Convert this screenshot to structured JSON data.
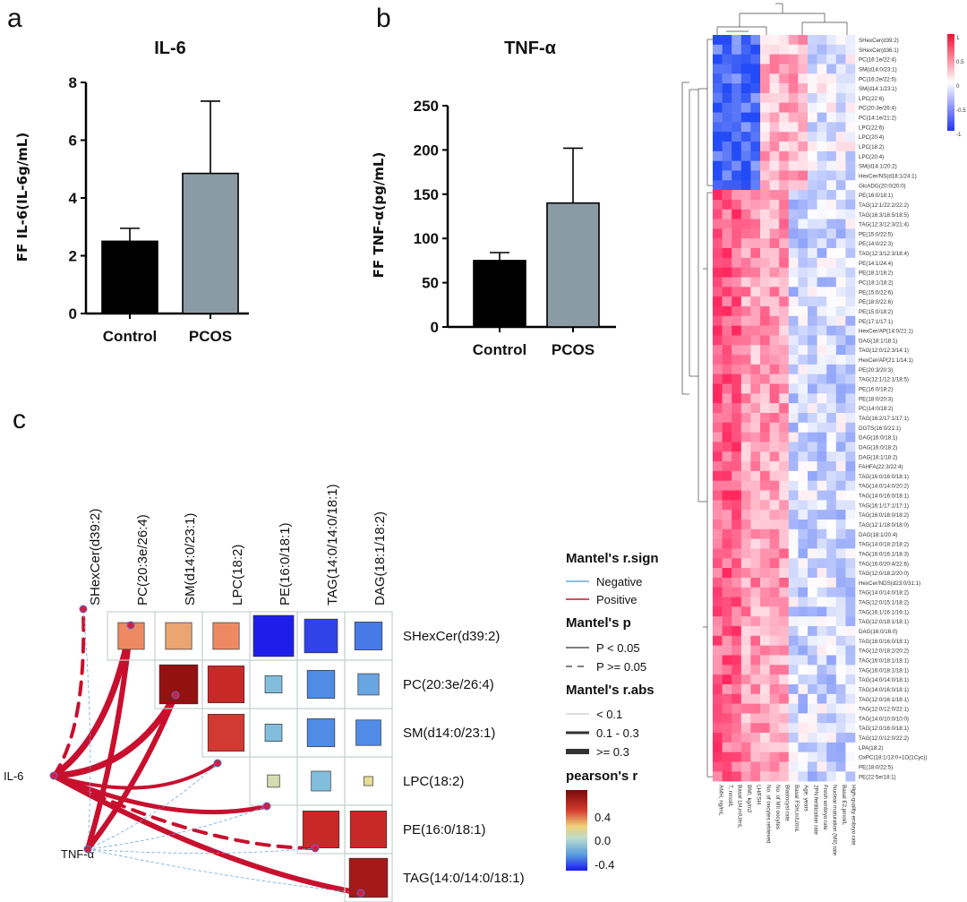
{
  "panel_labels": {
    "a": "a",
    "b": "b",
    "c": "c"
  },
  "chart_data": [
    {
      "type": "bar",
      "title": "IL-6",
      "ylabel": "FF IL-6(IL-6g/mL)",
      "categories": [
        "Control",
        "PCOS"
      ],
      "values": [
        2.5,
        4.85
      ],
      "error_upper": [
        2.95,
        7.35
      ],
      "ylim": [
        0,
        8
      ],
      "yticks": [
        "0",
        "2",
        "4",
        "6",
        "8"
      ],
      "bar_colors": [
        "#000000",
        "#8b9ba6"
      ]
    },
    {
      "type": "bar",
      "title": "TNF-α",
      "ylabel": "FF TNF-α(pg/mL)",
      "categories": [
        "Control",
        "PCOS"
      ],
      "values": [
        75,
        140
      ],
      "error_upper": [
        84,
        202
      ],
      "ylim": [
        0,
        250
      ],
      "yticks": [
        "0",
        "50",
        "100",
        "150",
        "200",
        "250"
      ],
      "bar_colors": [
        "#000000",
        "#8b9ba6"
      ]
    },
    {
      "type": "heatmap",
      "colorbar_ticks": [
        "1",
        "0.5",
        "0",
        "-0.5",
        "-1"
      ],
      "rows": [
        "SHexCer(d39:2)",
        "SHexCer(d36:1)",
        "PC(16:1e/22:4)",
        "SM(d14:0/23:1)",
        "PC(16:2e/22:5)",
        "SM(d14:1/23:1)",
        "LPC(22:6)",
        "PC(20:3e/26:4)",
        "PC(14:1e/21:2)",
        "LPC(22:6)",
        "LPC(20:4)",
        "LPC(18:2)",
        "LPC(20:4)",
        "SM(d14:1/20:2)",
        "HexCer/NS(d18:1/24:1)",
        "GlcADG(20:0/20:0)",
        "PE(16:0/18:1)",
        "TAG(12:1/22:2/22:2)",
        "TAG(16:3/18:5/18:5)",
        "TAG(12:3/12:3/21:4)",
        "PE(15:0/22:5)",
        "PE(14:0/22:3)",
        "TAG(12:3/12:3/18:4)",
        "PE(14:1/24:4)",
        "PE(18:1/18:2)",
        "PC(18:1/18:2)",
        "PE(15:0/22:6)",
        "PE(18:0/22:6)",
        "PE(15:0/18:2)",
        "PE(17:1/17:1)",
        "HexCer/AP(14:0/21:1)",
        "DAG(18:1/18:1)",
        "TAG(12:0/12:3/14:1)",
        "HexCer/AP(21:1/14:1)",
        "PE(20:3/20:3)",
        "TAG(12:1/12:1/18:5)",
        "PE(16:0/18:2)",
        "PE(18:0/20:3)",
        "PC(14:0/18:2)",
        "TAG(16:2/17:1/17:1)",
        "DGTS(16:0/21:1)",
        "DAG(16:0/18:1)",
        "DAG(16:0/18:2)",
        "DAG(18:1/18:2)",
        "FAHFA(22:3/22:4)",
        "TAG(16:0/16:0/18:1)",
        "TAG(14:0/14:0/20:2)",
        "TAG(14:0/16:0/18:1)",
        "TAG(16:1/17:1/17:1)",
        "TAG(16:0/18:0/18:2)",
        "TAG(12:1/18:0/18:0)",
        "DAG(18:1/20:4)",
        "TAG(14:0/18:2/18:2)",
        "TAG(16:0/16:1/18:3)",
        "TAG(16:0/20:4/22:6)",
        "TAG(12:0/18:2/20:0)",
        "HexCer/NDS(d23:0/31:1)",
        "TAG(14:0/14:0/18:2)",
        "TAG(12:0/15:1/18:2)",
        "TAG(16:1/16:1/16:1)",
        "TAG(12:0/18:1/18:1)",
        "DAG(16:0/16:0)",
        "TAG(16:0/16:0/18:1)",
        "TAG(12:0/18:2/20:2)",
        "TAG(16:0/18:1/18:1)",
        "TAG(16:0/18:1/18:1)",
        "TAG(14:0/14:0/18:1)",
        "TAG(14:0/16:0/18:1)",
        "TAG(12:0/16:1/18:1)",
        "TAG(12:0/12:0/22:1)",
        "TAG(14:0/10:0/10:0)",
        "TAG(12:0/16:0/18:1)",
        "TAG(12:0/12:0/22:2)",
        "LPA(18:2)",
        "OxPC(18:1/13:0+1O(1Cyc))",
        "PE(18:0/22:5)",
        "PE(22:5e/18:1)"
      ],
      "columns": [
        "AMH, ng/mL",
        "T, nmol/L",
        "Basal LH,mIU/mL",
        "BMI, kg/m2",
        "LH/FSH",
        "No. of oocytes retrieved",
        "No. of MII oocytes",
        "Blastocyst rate",
        "Basal FSH,mIU/mL",
        "Age, years",
        "2PN fertilization rate",
        "Fresh embryo rate",
        "Nuclear maturation (MII) rate",
        "Basal E2,pmol/L",
        "High-quality embryo rate"
      ]
    },
    {
      "type": "table",
      "lipids": [
        "SHexCer(d39:2)",
        "PC(20:3e/26:4)",
        "SM(d14:0/23:1)",
        "LPC(18:2)",
        "PE(16:0/18:1)",
        "TAG(14:0/14:0/18:1)",
        "DAG(18:1/18:2)"
      ],
      "matrix_r": [
        [
          0.25,
          0.2,
          0.25,
          -0.6,
          -0.5,
          -0.35
        ],
        [
          0.65,
          0.5,
          -0.1,
          -0.3,
          -0.2
        ],
        [
          0.45,
          -0.1,
          -0.3,
          -0.3
        ],
        [
          0.05,
          -0.1,
          0.1
        ],
        [
          0.5,
          0.5
        ],
        [
          0.6
        ]
      ],
      "matrix_size": [
        [
          0.65,
          0.65,
          0.65,
          1.0,
          0.82,
          0.68
        ],
        [
          0.95,
          0.9,
          0.42,
          0.68,
          0.52
        ],
        [
          0.9,
          0.42,
          0.68,
          0.62
        ],
        [
          0.3,
          0.48,
          0.22
        ],
        [
          0.9,
          0.9
        ],
        [
          0.95
        ]
      ],
      "factors": [
        "IL-6",
        "TNF-α"
      ],
      "links": [
        {
          "factor": 0,
          "lipid": 0,
          "width": 4,
          "dashed": true
        },
        {
          "factor": 0,
          "lipid": 1,
          "width": 7,
          "dashed": false
        },
        {
          "factor": 0,
          "lipid": 2,
          "width": 7,
          "dashed": false
        },
        {
          "factor": 0,
          "lipid": 3,
          "width": 4,
          "dashed": false
        },
        {
          "factor": 0,
          "lipid": 4,
          "width": 5,
          "dashed": false
        },
        {
          "factor": 0,
          "lipid": 5,
          "width": 4,
          "dashed": true
        },
        {
          "factor": 0,
          "lipid": 6,
          "width": 6,
          "dashed": false
        },
        {
          "factor": 1,
          "lipid": 0,
          "width": 0.8,
          "dashed": true
        },
        {
          "factor": 1,
          "lipid": 1,
          "width": 6,
          "dashed": false
        },
        {
          "factor": 1,
          "lipid": 2,
          "width": 6,
          "dashed": false
        },
        {
          "factor": 1,
          "lipid": 3,
          "width": 0.8,
          "dashed": true
        },
        {
          "factor": 1,
          "lipid": 4,
          "width": 0.8,
          "dashed": true
        },
        {
          "factor": 1,
          "lipid": 5,
          "width": 0.8,
          "dashed": true
        },
        {
          "factor": 1,
          "lipid": 6,
          "width": 0.8,
          "dashed": true
        }
      ]
    }
  ],
  "legend": {
    "sign_title": "Mantel's r.sign",
    "sign_items": [
      "Negative",
      "Positive"
    ],
    "sign_colors": [
      "#6aa8e0",
      "#c8102e"
    ],
    "p_title": "Mantel's p",
    "p_items": [
      "P < 0.05",
      "P >= 0.05"
    ],
    "abs_title": "Mantel's r.abs",
    "abs_items": [
      "< 0.1",
      "0.1 - 0.3",
      ">= 0.3"
    ],
    "r_title": "pearson's r",
    "r_ticks": [
      "0.4",
      "0.0",
      "-0.4"
    ]
  }
}
